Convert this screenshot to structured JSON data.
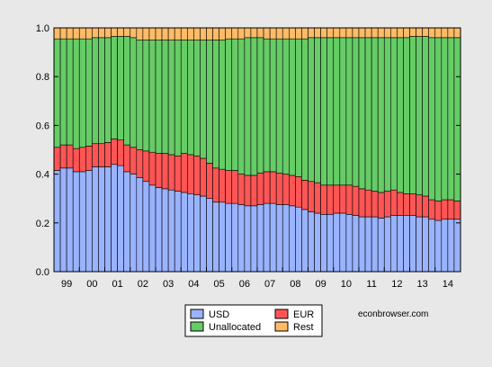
{
  "chart_data": {
    "type": "bar",
    "stacked": true,
    "x": [
      1999.0,
      1999.25,
      1999.5,
      1999.75,
      2000.0,
      2000.25,
      2000.5,
      2000.75,
      2001.0,
      2001.25,
      2001.5,
      2001.75,
      2002.0,
      2002.25,
      2002.5,
      2002.75,
      2003.0,
      2003.25,
      2003.5,
      2003.75,
      2004.0,
      2004.25,
      2004.5,
      2004.75,
      2005.0,
      2005.25,
      2005.5,
      2005.75,
      2006.0,
      2006.25,
      2006.5,
      2006.75,
      2007.0,
      2007.25,
      2007.5,
      2007.75,
      2008.0,
      2008.25,
      2008.5,
      2008.75,
      2009.0,
      2009.25,
      2009.5,
      2009.75,
      2010.0,
      2010.25,
      2010.5,
      2010.75,
      2011.0,
      2011.25,
      2011.5,
      2011.75,
      2012.0,
      2012.25,
      2012.5,
      2012.75,
      2013.0,
      2013.25,
      2013.5,
      2013.75,
      2014.0,
      2014.25,
      2014.5,
      2014.75
    ],
    "series": [
      {
        "name": "USD",
        "color": "#99b3ff",
        "values": [
          0.415,
          0.425,
          0.425,
          0.41,
          0.41,
          0.415,
          0.43,
          0.43,
          0.43,
          0.44,
          0.435,
          0.41,
          0.4,
          0.385,
          0.37,
          0.355,
          0.345,
          0.34,
          0.335,
          0.33,
          0.325,
          0.32,
          0.315,
          0.31,
          0.3,
          0.285,
          0.285,
          0.28,
          0.28,
          0.275,
          0.27,
          0.27,
          0.275,
          0.28,
          0.28,
          0.275,
          0.275,
          0.27,
          0.265,
          0.255,
          0.245,
          0.24,
          0.235,
          0.235,
          0.24,
          0.24,
          0.235,
          0.23,
          0.225,
          0.225,
          0.225,
          0.22,
          0.225,
          0.23,
          0.23,
          0.23,
          0.23,
          0.225,
          0.225,
          0.215,
          0.21,
          0.215,
          0.215,
          0.215
        ]
      },
      {
        "name": "EUR",
        "color": "#ff5555",
        "values": [
          0.095,
          0.095,
          0.095,
          0.095,
          0.1,
          0.1,
          0.095,
          0.095,
          0.1,
          0.105,
          0.105,
          0.11,
          0.11,
          0.115,
          0.125,
          0.135,
          0.14,
          0.145,
          0.145,
          0.145,
          0.16,
          0.16,
          0.16,
          0.155,
          0.145,
          0.14,
          0.135,
          0.135,
          0.135,
          0.125,
          0.125,
          0.125,
          0.13,
          0.13,
          0.13,
          0.13,
          0.125,
          0.125,
          0.125,
          0.12,
          0.125,
          0.125,
          0.12,
          0.12,
          0.115,
          0.115,
          0.12,
          0.12,
          0.115,
          0.11,
          0.105,
          0.105,
          0.105,
          0.105,
          0.095,
          0.09,
          0.09,
          0.09,
          0.085,
          0.08,
          0.08,
          0.08,
          0.08,
          0.075
        ]
      },
      {
        "name": "Unallocated",
        "color": "#66cc66",
        "values": [
          0.445,
          0.435,
          0.435,
          0.45,
          0.445,
          0.44,
          0.435,
          0.435,
          0.43,
          0.42,
          0.425,
          0.445,
          0.45,
          0.45,
          0.455,
          0.46,
          0.465,
          0.465,
          0.47,
          0.475,
          0.465,
          0.47,
          0.475,
          0.485,
          0.505,
          0.525,
          0.53,
          0.54,
          0.54,
          0.555,
          0.565,
          0.565,
          0.555,
          0.545,
          0.545,
          0.55,
          0.555,
          0.56,
          0.565,
          0.58,
          0.59,
          0.595,
          0.605,
          0.605,
          0.605,
          0.605,
          0.605,
          0.61,
          0.62,
          0.625,
          0.63,
          0.635,
          0.63,
          0.625,
          0.635,
          0.64,
          0.645,
          0.65,
          0.655,
          0.665,
          0.67,
          0.665,
          0.665,
          0.67
        ]
      },
      {
        "name": "Rest",
        "color": "#ffbb66",
        "values": [
          0.045,
          0.045,
          0.045,
          0.045,
          0.045,
          0.045,
          0.04,
          0.04,
          0.04,
          0.035,
          0.035,
          0.035,
          0.04,
          0.05,
          0.05,
          0.05,
          0.05,
          0.05,
          0.05,
          0.05,
          0.05,
          0.05,
          0.05,
          0.05,
          0.05,
          0.05,
          0.05,
          0.045,
          0.045,
          0.045,
          0.04,
          0.04,
          0.04,
          0.045,
          0.045,
          0.045,
          0.045,
          0.045,
          0.045,
          0.045,
          0.04,
          0.04,
          0.04,
          0.04,
          0.04,
          0.04,
          0.04,
          0.04,
          0.04,
          0.04,
          0.04,
          0.04,
          0.04,
          0.04,
          0.04,
          0.04,
          0.035,
          0.035,
          0.035,
          0.04,
          0.04,
          0.04,
          0.04,
          0.04
        ]
      }
    ],
    "x_tick_labels": [
      "99",
      "00",
      "01",
      "02",
      "03",
      "04",
      "05",
      "06",
      "07",
      "08",
      "09",
      "10",
      "11",
      "12",
      "13",
      "14"
    ],
    "y_ticks": [
      0.0,
      0.2,
      0.4,
      0.6,
      0.8,
      1.0
    ],
    "y_tick_labels": [
      "0.0",
      "0.2",
      "0.4",
      "0.6",
      "0.8",
      "1.0"
    ],
    "ylim": [
      0,
      1
    ],
    "grid": false,
    "legend": {
      "placement": "bottom-center",
      "columns": 2
    },
    "plot_background": "#ffffff",
    "page_background": "#e8e8e8"
  },
  "credit": "econbrowser.com"
}
